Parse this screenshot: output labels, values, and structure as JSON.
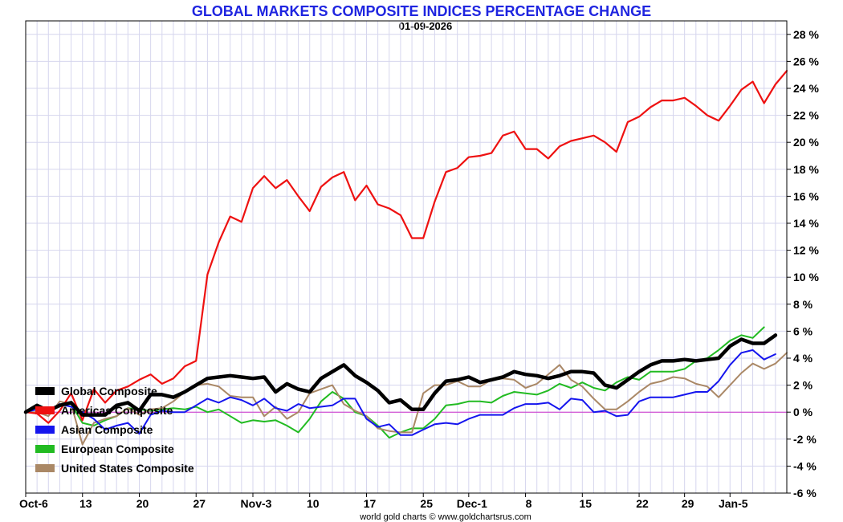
{
  "chart_data": {
    "type": "line",
    "title": "GLOBAL MARKETS COMPOSITE INDICES PERCENTAGE CHANGE",
    "subtitle": "01-09-2026",
    "footer": "world gold charts © www.goldchartsrus.com",
    "ylim": [
      -6,
      29
    ],
    "y_ticks": [
      28,
      26,
      24,
      22,
      20,
      18,
      16,
      14,
      12,
      10,
      8,
      6,
      4,
      2,
      0,
      -2,
      -4,
      -6
    ],
    "y_tick_labels": [
      "28 %",
      "26 %",
      "24 %",
      "22 %",
      "20 %",
      "18 %",
      "16 %",
      "14 %",
      "12 %",
      "10 %",
      "8 %",
      "6 %",
      "4 %",
      "2 %",
      "0 %",
      "-2 %",
      "-4 %",
      "-6 %"
    ],
    "x_ticks": [
      {
        "label": "Oct-6",
        "index": 0
      },
      {
        "label": "13",
        "index": 5
      },
      {
        "label": "20",
        "index": 10
      },
      {
        "label": "27",
        "index": 15
      },
      {
        "label": "Nov-3",
        "index": 20
      },
      {
        "label": "10",
        "index": 25
      },
      {
        "label": "17",
        "index": 30
      },
      {
        "label": "25",
        "index": 35
      },
      {
        "label": "Dec-1",
        "index": 39
      },
      {
        "label": "8",
        "index": 44
      },
      {
        "label": "15",
        "index": 49
      },
      {
        "label": "22",
        "index": 54
      },
      {
        "label": "29",
        "index": 58
      },
      {
        "label": "Jan-5",
        "index": 62
      }
    ],
    "zero_line_color": "#cc33cc",
    "series": [
      {
        "name": "European Composite",
        "color": "#22bb22",
        "width": 2,
        "values": [
          0.0,
          0.3,
          0.1,
          0.5,
          0.6,
          -0.8,
          -1.0,
          -0.6,
          -0.3,
          0.3,
          0.2,
          0.1,
          0.2,
          0.3,
          0.2,
          0.4,
          0.0,
          0.2,
          -0.3,
          -0.8,
          -0.6,
          -0.7,
          -0.6,
          -1.0,
          -1.5,
          -0.5,
          0.8,
          1.5,
          1.0,
          0.0,
          -0.3,
          -1.0,
          -1.9,
          -1.5,
          -1.2,
          -1.2,
          -0.5,
          0.5,
          0.6,
          0.8,
          0.8,
          0.7,
          1.2,
          1.5,
          1.4,
          1.3,
          1.6,
          2.1,
          1.8,
          2.2,
          1.8,
          1.6,
          2.2,
          2.6,
          2.4,
          3.0,
          3.0,
          3.0,
          3.2,
          3.8,
          4.0,
          4.6,
          5.3,
          5.7,
          5.5,
          6.3
        ]
      },
      {
        "name": "United States Composite",
        "color": "#aa8866",
        "width": 2,
        "values": [
          0.0,
          0.0,
          -0.3,
          0.8,
          0.6,
          -2.4,
          -0.8,
          -0.5,
          -0.3,
          0.3,
          -0.2,
          0.2,
          0.3,
          0.8,
          1.5,
          2.0,
          2.1,
          1.9,
          1.2,
          1.1,
          1.1,
          -0.3,
          0.4,
          -0.5,
          0.0,
          1.4,
          1.7,
          2.0,
          0.6,
          0.1,
          -0.3,
          -1.2,
          -1.4,
          -1.5,
          -1.5,
          1.4,
          2.0,
          2.0,
          2.3,
          1.9,
          1.9,
          2.4,
          2.5,
          2.4,
          1.8,
          2.1,
          2.8,
          3.5,
          2.4,
          1.9,
          1.0,
          0.2,
          0.2,
          0.8,
          1.5,
          2.1,
          2.3,
          2.6,
          2.5,
          2.1,
          1.9,
          1.1,
          2.0,
          2.9,
          3.6,
          3.2,
          3.6,
          4.4
        ]
      },
      {
        "name": "Asian Composite",
        "color": "#1515ee",
        "width": 2,
        "values": [
          0.0,
          0.2,
          0.1,
          0.6,
          0.4,
          0.0,
          -0.5,
          -1.3,
          -1.0,
          -0.8,
          -1.6,
          -0.2,
          0.1,
          0.0,
          0.0,
          0.5,
          1.0,
          0.7,
          1.1,
          0.9,
          0.5,
          1.0,
          0.3,
          0.1,
          0.6,
          0.3,
          0.4,
          0.5,
          1.0,
          1.0,
          -0.5,
          -1.1,
          -0.9,
          -1.7,
          -1.7,
          -1.3,
          -0.9,
          -0.8,
          -0.9,
          -0.5,
          -0.2,
          -0.2,
          -0.2,
          0.3,
          0.6,
          0.6,
          0.7,
          0.2,
          1.0,
          0.9,
          0.0,
          0.1,
          -0.3,
          -0.2,
          0.8,
          1.1,
          1.1,
          1.1,
          1.3,
          1.5,
          1.5,
          2.3,
          3.5,
          4.4,
          4.6,
          3.9,
          4.3
        ]
      },
      {
        "name": "Americas Composite",
        "color": "#ee1111",
        "width": 2.2,
        "values": [
          0.0,
          -0.1,
          -0.8,
          0.1,
          1.4,
          -0.6,
          1.7,
          0.7,
          1.6,
          1.9,
          2.4,
          2.8,
          2.1,
          2.5,
          3.4,
          3.8,
          10.2,
          12.6,
          14.5,
          14.1,
          16.6,
          17.5,
          16.6,
          17.2,
          16.0,
          14.9,
          16.7,
          17.4,
          17.8,
          15.7,
          16.8,
          15.4,
          15.1,
          14.6,
          12.9,
          12.9,
          15.6,
          17.8,
          18.1,
          18.9,
          19.0,
          19.2,
          20.5,
          20.8,
          19.5,
          19.5,
          18.8,
          19.7,
          20.1,
          20.3,
          20.5,
          20.0,
          19.3,
          21.5,
          21.9,
          22.6,
          23.1,
          23.1,
          23.3,
          22.7,
          22.0,
          21.6,
          22.7,
          23.9,
          24.5,
          22.9,
          24.3,
          25.3
        ]
      },
      {
        "name": "Global Composite",
        "color": "#000000",
        "width": 4.5,
        "values": [
          0.0,
          0.5,
          0.1,
          0.5,
          0.7,
          -0.2,
          -0.2,
          -0.2,
          0.5,
          0.7,
          0.1,
          1.3,
          1.3,
          1.1,
          1.5,
          2.0,
          2.5,
          2.6,
          2.7,
          2.6,
          2.5,
          2.6,
          1.5,
          2.1,
          1.7,
          1.5,
          2.5,
          3.0,
          3.5,
          2.7,
          2.2,
          1.6,
          0.7,
          0.9,
          0.2,
          0.2,
          1.4,
          2.3,
          2.4,
          2.6,
          2.2,
          2.4,
          2.6,
          3.0,
          2.8,
          2.7,
          2.5,
          2.7,
          3.0,
          3.0,
          2.9,
          2.0,
          1.8,
          2.4,
          3.0,
          3.5,
          3.8,
          3.8,
          3.9,
          3.8,
          3.9,
          4.0,
          4.9,
          5.4,
          5.1,
          5.1,
          5.7
        ]
      }
    ],
    "legend": [
      {
        "name": "Global Composite",
        "color": "#000000"
      },
      {
        "name": "Americas Composite",
        "color": "#ee1111"
      },
      {
        "name": "Asian Composite",
        "color": "#1515ee"
      },
      {
        "name": "European Composite",
        "color": "#22bb22"
      },
      {
        "name": "United States Composite",
        "color": "#aa8866"
      }
    ]
  }
}
